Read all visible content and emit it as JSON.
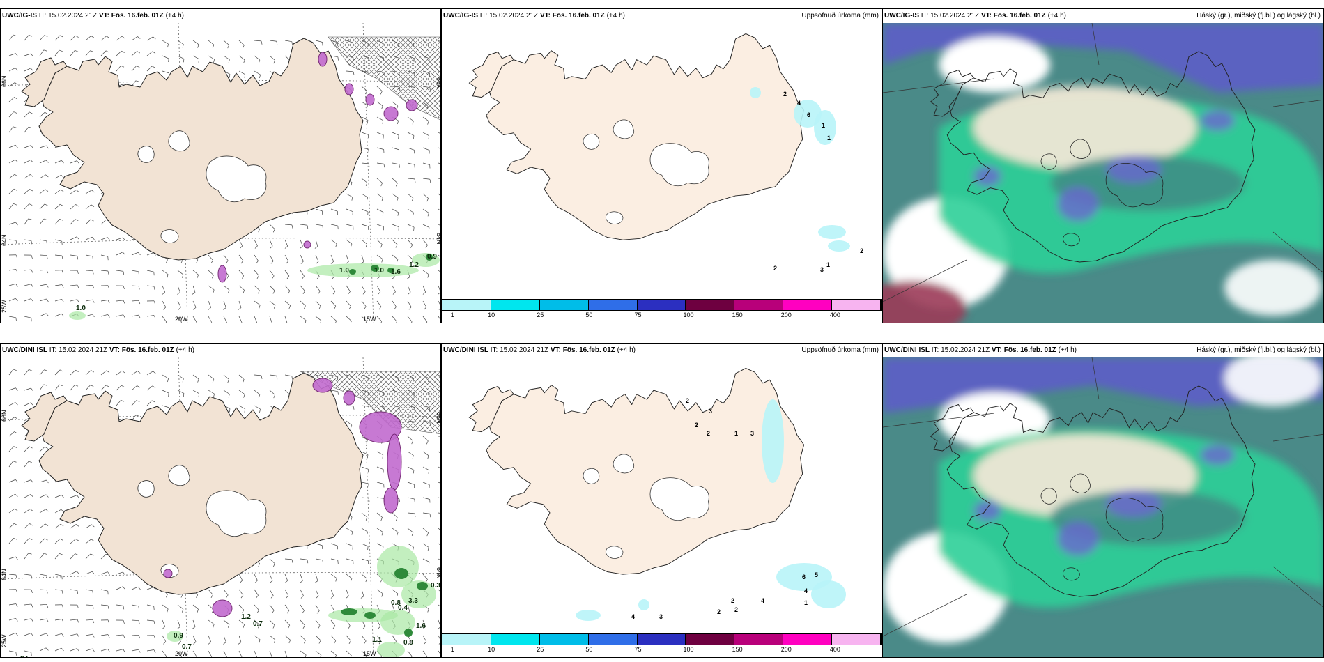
{
  "panels": [
    {
      "id": "p1",
      "model": "UWC/IG-IS",
      "it_label": "IT:",
      "issue": "15.02.2024 21Z",
      "vt_label": "VT:",
      "valid": "Fös. 16.feb. 01Z",
      "lead": "(+4 h)",
      "right_title": ""
    },
    {
      "id": "p2",
      "model": "UWC/IG-IS",
      "it_label": "IT:",
      "issue": "15.02.2024 21Z",
      "vt_label": "VT:",
      "valid": "Fös. 16.feb. 01Z",
      "lead": "(+4 h)",
      "right_title": "Uppsöfnuð úrkoma (mm)"
    },
    {
      "id": "p3",
      "model": "UWC/IG-IS",
      "it_label": "IT:",
      "issue": "15.02.2024 21Z",
      "vt_label": "VT:",
      "valid": "Fös. 16.feb. 01Z",
      "lead": "(+4 h)",
      "right_title": "Háský (gr.), miðský (fj.bl.) og lágský (bl.)"
    },
    {
      "id": "p4",
      "model": "UWC/DINI ISL",
      "it_label": "IT:",
      "issue": "15.02.2024 21Z",
      "vt_label": "VT:",
      "valid": "Fös. 16.feb. 01Z",
      "lead": "(+4 h)",
      "right_title": ""
    },
    {
      "id": "p5",
      "model": "UWC/DINI ISL",
      "it_label": "IT:",
      "issue": "15.02.2024 21Z",
      "vt_label": "VT:",
      "valid": "Fös. 16.feb. 01Z",
      "lead": "(+4 h)",
      "right_title": "Uppsöfnuð úrkoma (mm)"
    },
    {
      "id": "p6",
      "model": "UWC/DINI ISL",
      "it_label": "IT:",
      "issue": "15.02.2024 21Z",
      "vt_label": "VT:",
      "valid": "Fös. 16.feb. 01Z",
      "lead": "(+4 h)",
      "right_title": "Háský (gr.), miðský (fj.bl.) og lágský (bl.)"
    }
  ],
  "axis_labels": {
    "lat66": "66N",
    "lat64": "64N",
    "lon20": "20W",
    "lon15": "15W",
    "lon25": "25W"
  },
  "legend": {
    "colors": [
      "#b8f4f8",
      "#00e6ee",
      "#00bde8",
      "#2f6ee8",
      "#2b2fc0",
      "#6e0040",
      "#b8007a",
      "#ff00c0",
      "#f7b4f0"
    ],
    "ticks": [
      "1",
      "10",
      "25",
      "50",
      "75",
      "100",
      "150",
      "200",
      "400"
    ]
  },
  "precip_values_top": [
    "1.0",
    "1.0",
    "1.2",
    "0.9",
    "1.6",
    "1.0"
  ],
  "precip_values_bottom": [
    "0.5",
    "0.7",
    "0.9",
    "1.2",
    "0.7",
    "1.1",
    "0.8",
    "3.3",
    "0.9",
    "0.3",
    "1.6",
    "0.4"
  ],
  "accum_values_top": [
    "2",
    "4",
    "6",
    "1",
    "1",
    "2",
    "1",
    "3",
    "2"
  ],
  "accum_values_bottom": [
    "2",
    "3",
    "2",
    "2",
    "1",
    "3",
    "6",
    "5",
    "4",
    "1",
    "4",
    "2",
    "2",
    "2",
    "4",
    "3"
  ],
  "colors": {
    "land": "#f2e3d4",
    "land_acc": "#fbeee2",
    "cloud_high": "#eee4d4",
    "cloud_mid": "#00c890",
    "cloud_low": "#5e60c8"
  }
}
